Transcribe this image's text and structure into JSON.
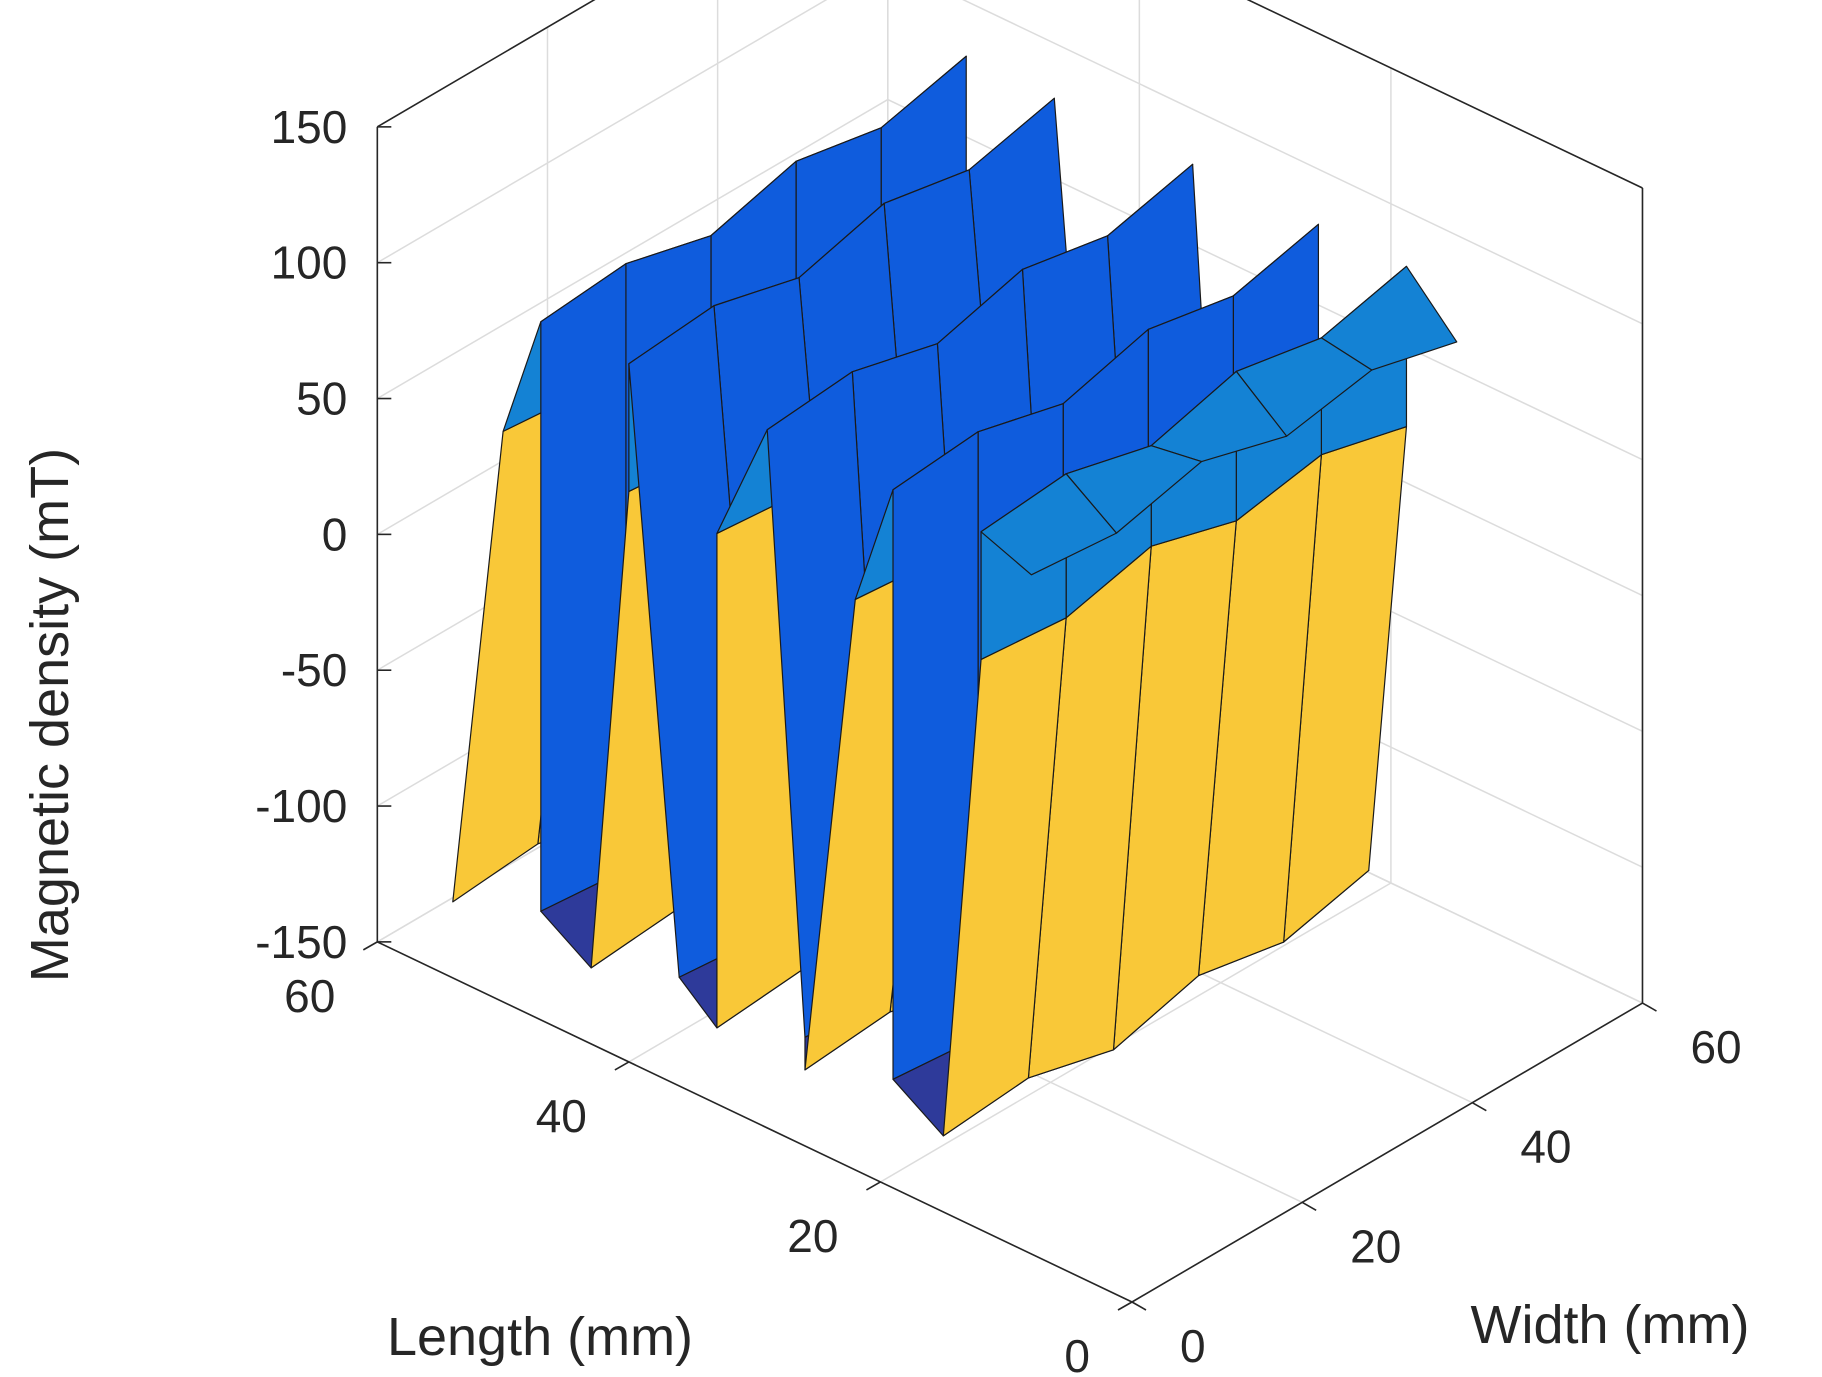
{
  "chart_data": {
    "type": "surface",
    "title": "",
    "xlabel": "Length (mm)",
    "ylabel": "Width (mm)",
    "zlabel": "Magnetic density (mT)",
    "xlim": [
      0,
      60
    ],
    "ylim": [
      0,
      60
    ],
    "zlim": [
      -150,
      150
    ],
    "x_ticks": [
      0,
      20,
      40,
      60
    ],
    "x_tick_labels": [
      "0",
      "20",
      "40",
      "60"
    ],
    "y_ticks": [
      0,
      20,
      40,
      60
    ],
    "y_tick_labels": [
      "0",
      "20",
      "40",
      "60"
    ],
    "z_ticks": [
      -150,
      -100,
      -50,
      0,
      50,
      100,
      150
    ],
    "z_tick_labels": [
      "-150",
      "-100",
      "-50",
      "0",
      "50",
      "100",
      "150"
    ],
    "grid": true,
    "colormap": "parula",
    "length_mm": [
      54,
      50,
      47,
      47,
      43,
      40,
      40,
      36,
      33,
      33,
      29,
      26,
      26,
      22,
      19,
      19,
      15,
      12,
      12,
      8
    ],
    "width_mm": [
      0,
      10,
      20,
      30,
      40,
      50
    ],
    "profile_mT": [
      -122,
      60,
      107,
      -110,
      -122,
      60,
      107,
      -110,
      -122,
      60,
      107,
      -110,
      -122,
      60,
      107,
      -110,
      -122,
      60,
      107,
      100
    ],
    "width_variation_mT": [
      0,
      3,
      -5,
      4,
      -2,
      6
    ],
    "colors": {
      "c_low": "#352a87",
      "c_neg": "#2e3a9a",
      "c_midlow": "#0f5cdd",
      "c_mid": "#1482d4",
      "c_hi": "#d8c04f",
      "c_hi2": "#f9c838",
      "c_top": "#f9fb0e"
    }
  }
}
